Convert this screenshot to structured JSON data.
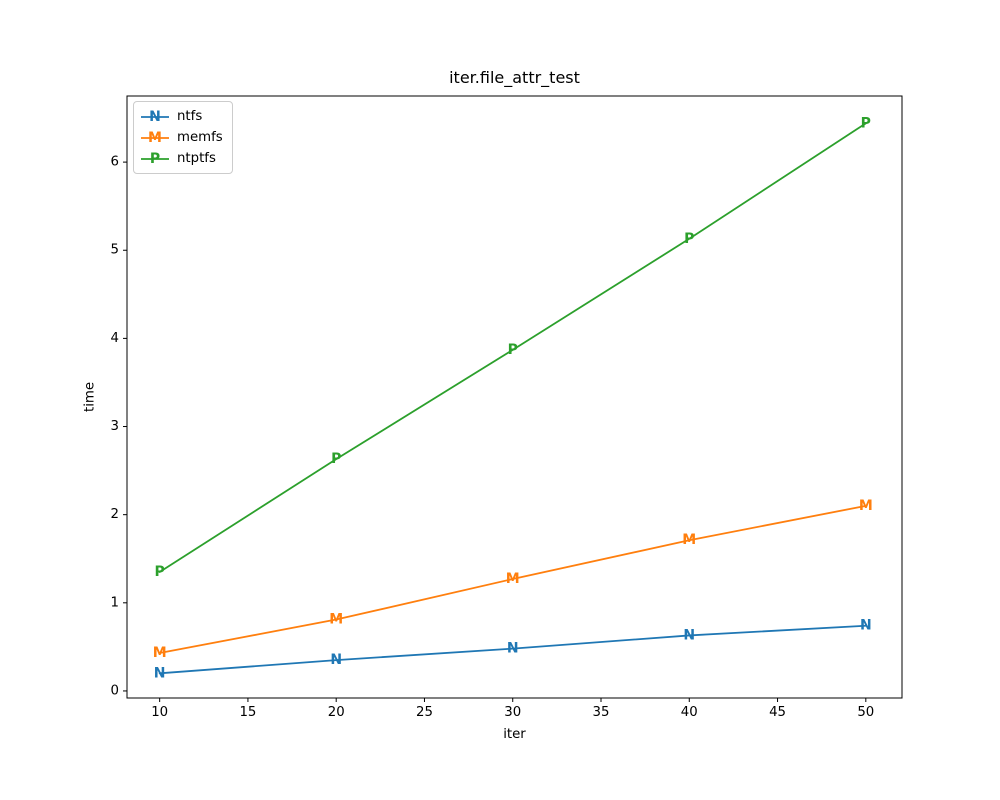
{
  "chart_data": {
    "type": "line",
    "title": "iter.file_attr_test",
    "xlabel": "iter",
    "ylabel": "time",
    "x": [
      10,
      20,
      30,
      40,
      50
    ],
    "series": [
      {
        "name": "ntfs",
        "marker": "N",
        "color": "#1f77b4",
        "values": [
          0.2,
          0.35,
          0.48,
          0.63,
          0.74
        ]
      },
      {
        "name": "memfs",
        "marker": "M",
        "color": "#ff7f0e",
        "values": [
          0.43,
          0.81,
          1.27,
          1.71,
          2.1
        ]
      },
      {
        "name": "ntptfs",
        "marker": "P",
        "color": "#2ca02c",
        "values": [
          1.35,
          2.63,
          3.87,
          5.13,
          6.44
        ]
      }
    ],
    "xticks": [
      10,
      15,
      20,
      25,
      30,
      35,
      40,
      45,
      50
    ],
    "yticks": [
      0,
      1,
      2,
      3,
      4,
      5,
      6
    ],
    "xlim": [
      8.15,
      52.05
    ],
    "ylim": [
      -0.08,
      6.75
    ],
    "legend_position": "upper-left",
    "grid": false,
    "axis_color": "#000000",
    "background_color": "#ffffff"
  }
}
